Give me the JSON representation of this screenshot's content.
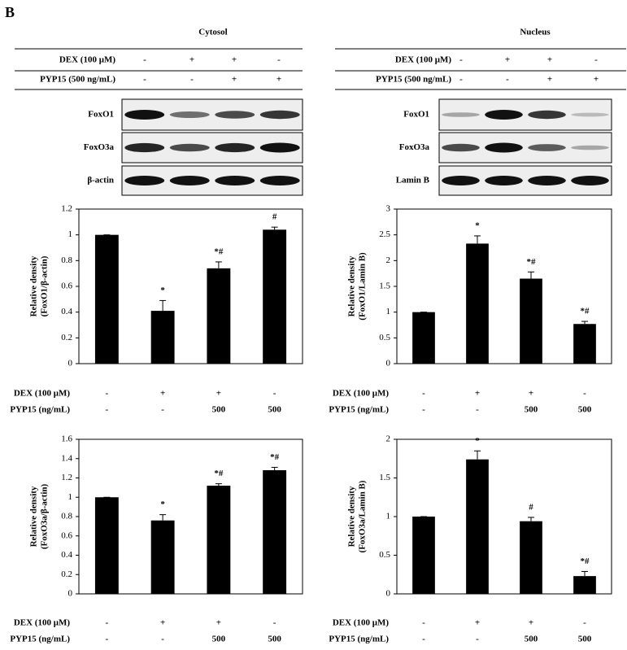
{
  "panel_label": "B",
  "blot_panels": [
    {
      "title": "Cytosol",
      "rows": [
        {
          "label": "DEX (100 μM)",
          "values": [
            "-",
            "+",
            "+",
            "-"
          ]
        },
        {
          "label": "PYP15 (500 ng/mL)",
          "values": [
            "-",
            "-",
            "+",
            "+"
          ]
        }
      ],
      "blots": [
        "FoxO1",
        "FoxO3a",
        "β-actin"
      ]
    },
    {
      "title": "Nucleus",
      "rows": [
        {
          "label": "DEX (100 μM)",
          "values": [
            "-",
            "+",
            "+",
            "-"
          ]
        },
        {
          "label": "PYP15 (500 ng/mL)",
          "values": [
            "-",
            "-",
            "+",
            "+"
          ]
        }
      ],
      "blots": [
        "FoxO1",
        "FoxO3a",
        "Lamin B"
      ]
    }
  ],
  "chart_data": [
    {
      "type": "bar",
      "ylabel": [
        "Relative density",
        "(FoxO1/β-actin)"
      ],
      "categories": [
        null,
        null,
        null,
        null
      ],
      "values": [
        1.0,
        0.41,
        0.74,
        1.04
      ],
      "errors": [
        0.0,
        0.08,
        0.05,
        0.02
      ],
      "annotations": [
        null,
        "*",
        "*#",
        "#"
      ],
      "color": "#000000",
      "ylim": [
        0,
        1.2
      ],
      "yticks": [
        0,
        0.2,
        0.4,
        0.6,
        0.8,
        1,
        1.2
      ],
      "treatments": [
        {
          "label": "DEX (100 μM)",
          "values": [
            "-",
            "+",
            "+",
            "-"
          ]
        },
        {
          "label": "PYP15 (ng/mL)",
          "values": [
            "-",
            "-",
            "500",
            "500"
          ]
        }
      ]
    },
    {
      "type": "bar",
      "ylabel": [
        "Relative density",
        "(FoxO1/Lamin B)"
      ],
      "categories": [
        null,
        null,
        null,
        null
      ],
      "values": [
        1.0,
        2.33,
        1.65,
        0.77
      ],
      "errors": [
        0.0,
        0.15,
        0.13,
        0.05
      ],
      "annotations": [
        null,
        "*",
        "*#",
        "*#"
      ],
      "color": "#000000",
      "ylim": [
        0,
        3
      ],
      "yticks": [
        0,
        0.5,
        1,
        1.5,
        2,
        2.5,
        3
      ],
      "treatments": [
        {
          "label": "DEX (100 μM)",
          "values": [
            "-",
            "+",
            "+",
            "-"
          ]
        },
        {
          "label": "PYP15 (ng/mL)",
          "values": [
            "-",
            "-",
            "500",
            "500"
          ]
        }
      ]
    },
    {
      "type": "bar",
      "ylabel": [
        "Relative density",
        "(FoxO3a/β-actin)"
      ],
      "categories": [
        null,
        null,
        null,
        null
      ],
      "values": [
        1.0,
        0.76,
        1.12,
        1.28
      ],
      "errors": [
        0.0,
        0.06,
        0.02,
        0.03
      ],
      "annotations": [
        null,
        "*",
        "*#",
        "*#"
      ],
      "color": "#000000",
      "ylim": [
        0,
        1.6
      ],
      "yticks": [
        0,
        0.2,
        0.4,
        0.6,
        0.8,
        1,
        1.2,
        1.4,
        1.6
      ],
      "treatments": [
        {
          "label": "DEX (100 μM)",
          "values": [
            "-",
            "+",
            "+",
            "-"
          ]
        },
        {
          "label": "PYP15 (ng/mL)",
          "values": [
            "-",
            "-",
            "500",
            "500"
          ]
        }
      ]
    },
    {
      "type": "bar",
      "ylabel": [
        "Relative density",
        "(FoxO3a/Lamin B)"
      ],
      "categories": [
        null,
        null,
        null,
        null
      ],
      "values": [
        1.0,
        1.74,
        0.94,
        0.23
      ],
      "errors": [
        0.0,
        0.11,
        0.05,
        0.06
      ],
      "annotations": [
        null,
        "*",
        "#",
        "*#"
      ],
      "color": "#000000",
      "ylim": [
        0,
        2
      ],
      "yticks": [
        0,
        0.5,
        1,
        1.5,
        2
      ],
      "treatments": [
        {
          "label": "DEX (100 μM)",
          "values": [
            "-",
            "+",
            "+",
            "-"
          ]
        },
        {
          "label": "PYP15 (ng/mL)",
          "values": [
            "-",
            "-",
            "500",
            "500"
          ]
        }
      ]
    }
  ]
}
